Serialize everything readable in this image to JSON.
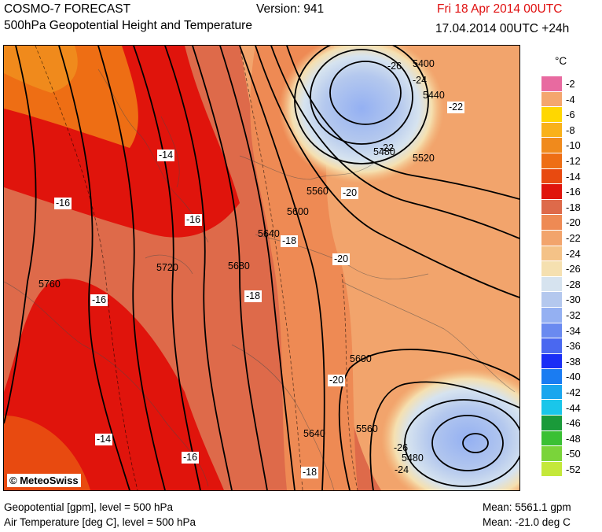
{
  "header": {
    "model": "COSMO-7 FORECAST",
    "version": "Version: 941",
    "valid_time": "Fri 18 Apr 2014 00UTC",
    "subtitle": "500hPa Geopotential Height and Temperature",
    "run_time": "17.04.2014 00UTC +24h"
  },
  "legend": {
    "unit": "°C",
    "entries": [
      {
        "label": "-2",
        "color": "#e86aa0"
      },
      {
        "label": "-4",
        "color": "#f4a66e"
      },
      {
        "label": "-6",
        "color": "#ffd700"
      },
      {
        "label": "-8",
        "color": "#f9b11a"
      },
      {
        "label": "-10",
        "color": "#f08a1c"
      },
      {
        "label": "-12",
        "color": "#ee6e14"
      },
      {
        "label": "-14",
        "color": "#e84a10"
      },
      {
        "label": "-16",
        "color": "#e0140c"
      },
      {
        "label": "-18",
        "color": "#de6a4a"
      },
      {
        "label": "-20",
        "color": "#ee8a54"
      },
      {
        "label": "-22",
        "color": "#f2a46c"
      },
      {
        "label": "-24",
        "color": "#f4c287"
      },
      {
        "label": "-26",
        "color": "#f5e0b0"
      },
      {
        "label": "-28",
        "color": "#d6e3ef"
      },
      {
        "label": "-30",
        "color": "#b4c8ee"
      },
      {
        "label": "-32",
        "color": "#94b0f2"
      },
      {
        "label": "-34",
        "color": "#6a8af0"
      },
      {
        "label": "-36",
        "color": "#4a68f0"
      },
      {
        "label": "-38",
        "color": "#1a2ef6"
      },
      {
        "label": "-40",
        "color": "#1a7cf2"
      },
      {
        "label": "-42",
        "color": "#1aa6ee"
      },
      {
        "label": "-44",
        "color": "#1ac6ea"
      },
      {
        "label": "-46",
        "color": "#1a9a3a"
      },
      {
        "label": "-48",
        "color": "#3ac034"
      },
      {
        "label": "-50",
        "color": "#7ad43a"
      },
      {
        "label": "-52",
        "color": "#c4e83a"
      }
    ]
  },
  "contour_labels": {
    "geopotential": [
      "5400",
      "5440",
      "5480",
      "5520",
      "5560",
      "5600",
      "5640",
      "5680",
      "5720",
      "5760",
      "5600",
      "5560",
      "5640",
      "5480"
    ],
    "temperature": [
      "-26",
      "-24",
      "-22",
      "-22",
      "-20",
      "-20",
      "-18",
      "-18",
      "-16",
      "-16",
      "-14",
      "-14",
      "-16",
      "-16",
      "-20",
      "-26",
      "-24",
      "-18"
    ]
  },
  "logo": "© MeteoSwiss",
  "footer": {
    "geopotential_desc": "Geopotential [gpm], level = 500 hPa",
    "temperature_desc": "Air Temperature [deg C], level = 500 hPa",
    "mean_geopotential": "Mean: 5561.1 gpm",
    "mean_temperature": "Mean:  -21.0 deg C"
  }
}
